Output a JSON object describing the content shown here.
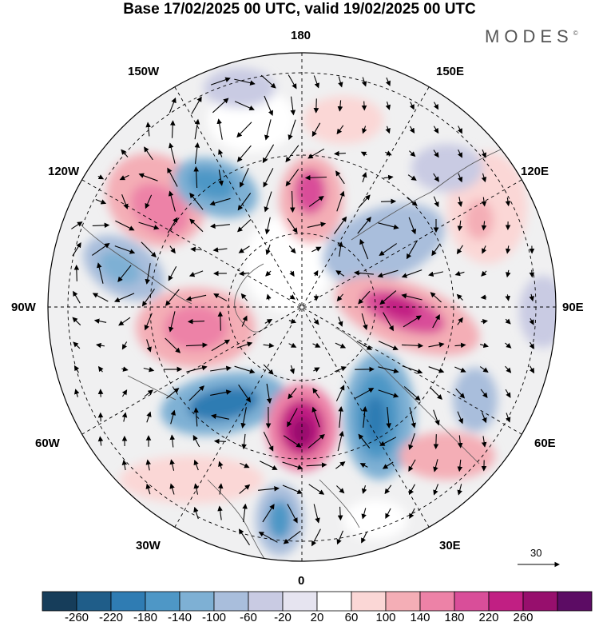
{
  "title": "Base 17/02/2025 00 UTC, valid 19/02/2025 00 UTC",
  "brand": "MODES",
  "brand_mark": "©",
  "longitude_labels": {
    "top": "180",
    "upper_left": "150W",
    "upper_right": "150E",
    "left_upper": "120W",
    "right_upper": "120E",
    "left": "90W",
    "right": "90E",
    "left_lower": "60W",
    "right_lower": "60E",
    "lower_left": "30W",
    "lower_right": "30E",
    "bottom": "0"
  },
  "reference_vector": {
    "value": "30"
  },
  "colorbar": {
    "tick_labels": [
      "-260",
      "-220",
      "-180",
      "-140",
      "-100",
      "-60",
      "-20",
      "20",
      "60",
      "100",
      "140",
      "180",
      "220",
      "260"
    ],
    "colors": [
      "#163d5a",
      "#1f5d89",
      "#2f7cb3",
      "#4e97c6",
      "#7eb0d4",
      "#a9bedc",
      "#c9cbe3",
      "#e6e4f0",
      "#ffffff",
      "#fbd7d6",
      "#f4aeb6",
      "#ed82a7",
      "#d94e99",
      "#c11f83",
      "#970f6d",
      "#5c0c64"
    ]
  },
  "map_features": {
    "projection": "north polar stereographic",
    "field": "geopotential height anomaly (shaded) with wind vectors"
  }
}
